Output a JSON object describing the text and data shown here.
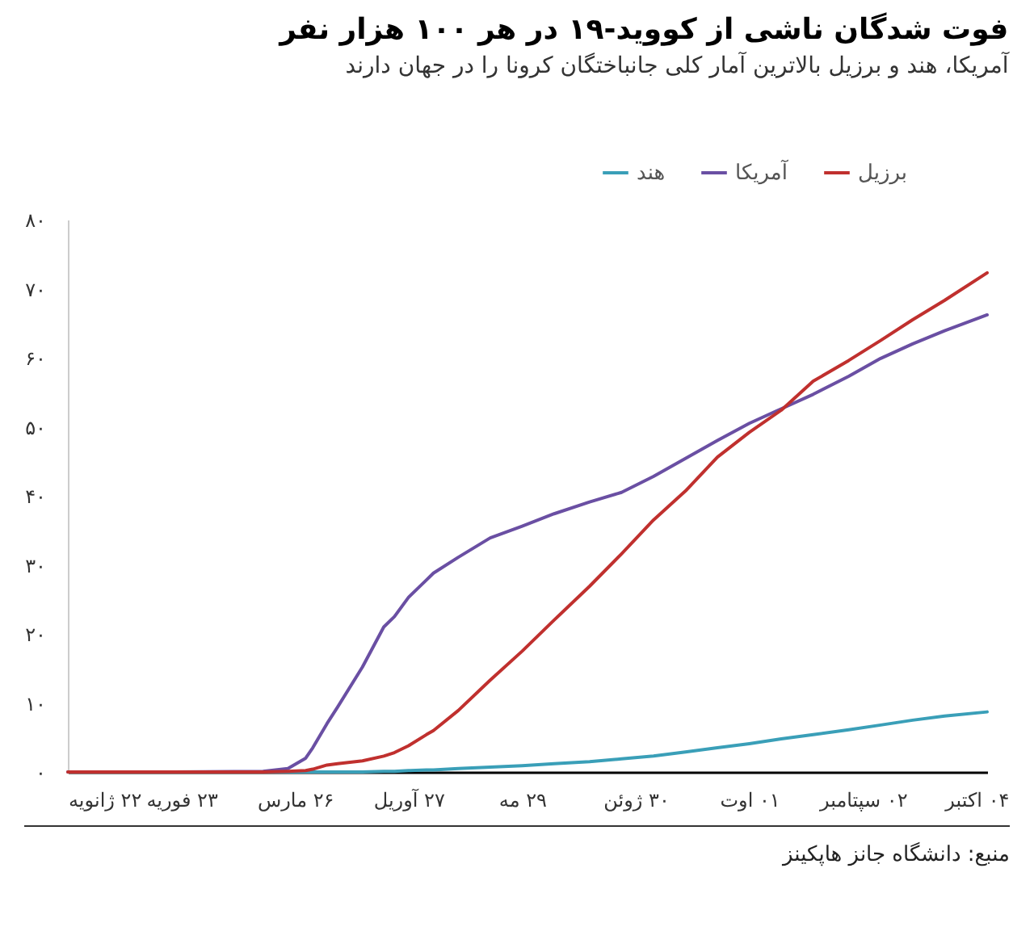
{
  "chart_data": {
    "type": "line",
    "title": "فوت شدگان ناشی از کووید-۱۹ در هر ۱۰۰ هزار نفر",
    "subtitle": "آمریکا، هند و برزیل بالاترین آمار کلی جانباختگان کرونا را در جهان دارند",
    "annotations": [
      "منبع: دانشگاه جانز هاپکینز"
    ],
    "x": [
      "--01-22",
      "--02-21",
      "--03-17",
      "--03-24",
      "--03-29",
      "--03-31",
      "--04-04",
      "--04-07",
      "--04-14",
      "--04-20",
      "--04-23",
      "--04-27",
      "--05-02",
      "--05-04",
      "--05-11",
      "--05-20",
      "--05-29",
      "--06-07",
      "--06-17",
      "--06-26",
      "--07-05",
      "--07-14",
      "--07-23",
      "--08-01",
      "--08-10",
      "--08-19",
      "--08-29",
      "--09-07",
      "--09-16",
      "--09-25",
      "--10-07"
    ],
    "series": [
      {
        "name": "برزیل",
        "color": "#c0302e",
        "values": [
          0,
          0,
          0,
          0.1,
          0.2,
          0.4,
          1,
          1.2,
          1.6,
          2.3,
          2.8,
          3.8,
          5.4,
          6,
          8.9,
          13.3,
          17.5,
          22,
          26.9,
          31.6,
          36.5,
          40.7,
          45.6,
          49.2,
          52.4,
          56.6,
          59.6,
          62.5,
          65.5,
          68.3,
          72.3
        ]
      },
      {
        "name": "آمریکا",
        "color": "#6a4fa3",
        "values": [
          0,
          0,
          0.1,
          0.5,
          2,
          3.5,
          7,
          9.4,
          15.2,
          21,
          22.5,
          25.3,
          27.8,
          28.8,
          31.1,
          33.9,
          35.6,
          37.4,
          39.1,
          40.5,
          42.8,
          45.4,
          48,
          50.5,
          52.6,
          54.7,
          57.3,
          59.9,
          62,
          63.9,
          66.2
        ]
      },
      {
        "name": "هند",
        "color": "#3a9fb8",
        "values": [
          null,
          null,
          0,
          0,
          0,
          0,
          0,
          0,
          0,
          0.1,
          0.1,
          0.2,
          0.3,
          0.3,
          0.5,
          0.7,
          0.9,
          1.2,
          1.5,
          1.9,
          2.3,
          2.9,
          3.5,
          4.1,
          4.8,
          5.4,
          6.1,
          6.8,
          7.5,
          8.1,
          8.7
        ]
      }
    ],
    "xlim": [
      "--01-22",
      "--10-07"
    ],
    "xticks": [
      {
        "value": "--01-22",
        "label": "۲۲ ژانویه"
      },
      {
        "value": "--02-23",
        "label": "۲۳ فوریه"
      },
      {
        "value": "--03-26",
        "label": "۲۶ مارس"
      },
      {
        "value": "--04-27",
        "label": "۲۷ آوریل"
      },
      {
        "value": "--05-29",
        "label": "۲۹ مه"
      },
      {
        "value": "--06-30",
        "label": "۳۰ ژوئن"
      },
      {
        "value": "--08-01",
        "label": "۰۱ اوت"
      },
      {
        "value": "--09-02",
        "label": "۰۲ سپتامبر"
      },
      {
        "value": "--10-04",
        "label": "۰۴ اکتبر"
      }
    ],
    "ylim": [
      0,
      80
    ],
    "yticks": [
      {
        "value": 0,
        "label": "۰"
      },
      {
        "value": 10,
        "label": "۱۰"
      },
      {
        "value": 20,
        "label": "۲۰"
      },
      {
        "value": 30,
        "label": "۳۰"
      },
      {
        "value": 40,
        "label": "۴۰"
      },
      {
        "value": 50,
        "label": "۵۰"
      },
      {
        "value": 60,
        "label": "۶۰"
      },
      {
        "value": 70,
        "label": "۷۰"
      },
      {
        "value": 80,
        "label": "۸۰"
      }
    ],
    "grid": false,
    "legend": "top right"
  }
}
